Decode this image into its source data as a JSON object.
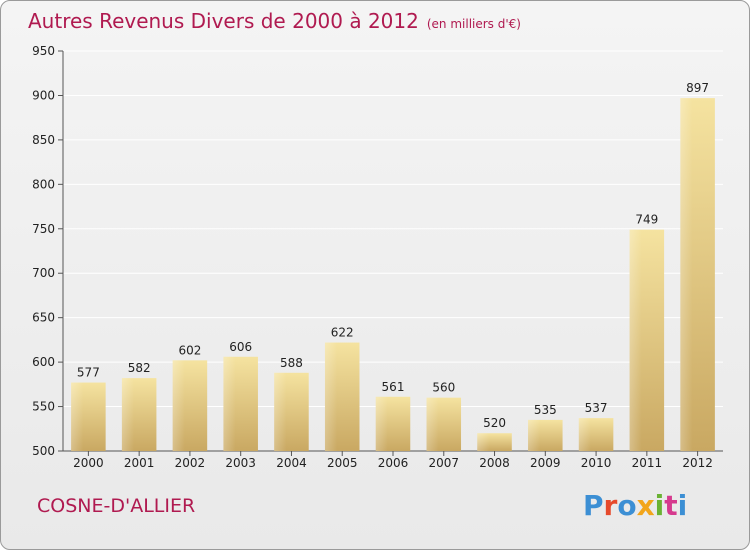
{
  "header": {
    "title": "Autres Revenus Divers de 2000 à 2012",
    "subtitle": "(en milliers d'€)"
  },
  "footer": {
    "town": "COSNE-D'ALLIER",
    "brand": "Proxiti"
  },
  "colors": {
    "title": "#b01a50",
    "bar_light": "#f5e3a0",
    "bar_dark": "#d4b168",
    "grid": "#ffffff"
  },
  "chart_data": {
    "type": "bar",
    "title": "Autres Revenus Divers de 2000 à 2012",
    "subtitle": "(en milliers d'€)",
    "xlabel": "",
    "ylabel": "",
    "categories": [
      "2000",
      "2001",
      "2002",
      "2003",
      "2004",
      "2005",
      "2006",
      "2007",
      "2008",
      "2009",
      "2010",
      "2011",
      "2012"
    ],
    "values": [
      577,
      582,
      602,
      606,
      588,
      622,
      561,
      560,
      520,
      535,
      537,
      749,
      897
    ],
    "ylim": [
      500,
      950
    ],
    "yticks": [
      500,
      550,
      600,
      650,
      700,
      750,
      800,
      850,
      900,
      950
    ],
    "grid": true,
    "legend": "none"
  }
}
